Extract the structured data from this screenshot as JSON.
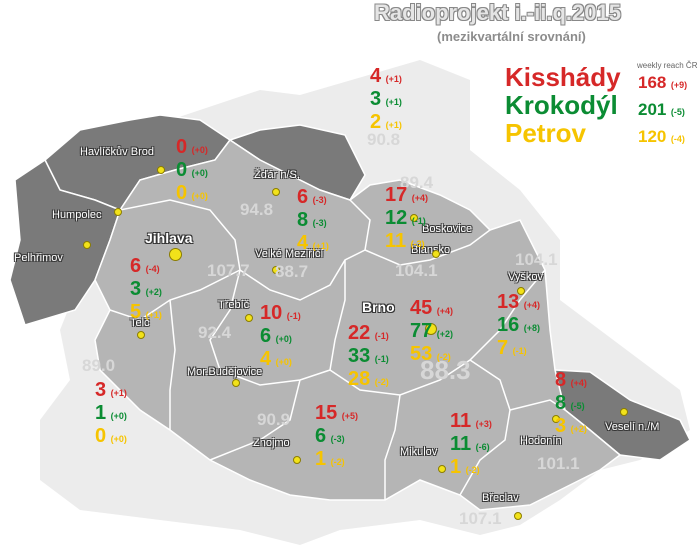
{
  "title": "Radioprojekt i.-ii.q.2015",
  "subtitle": "(mezikvartální srovnání)",
  "legend": {
    "note": "weekly reach ČR",
    "stations": [
      {
        "name": "Kisshády",
        "reach": "168",
        "change": "(+9)",
        "color": "#d62828"
      },
      {
        "name": "Krokodýl",
        "reach": "201",
        "change": "(-5)",
        "color": "#0b8c33"
      },
      {
        "name": "Petrov",
        "reach": "120",
        "change": "(-4)",
        "color": "#f6c400"
      }
    ]
  },
  "cities": [
    "Havlíčkův Brod",
    "Humpolec",
    "Pelhřimov",
    "Jihlava",
    "Telč",
    "Žďár n/S.",
    "Velké Meziříčí",
    "Třebíč",
    "Mor.Budějovice",
    "Znojmo",
    "Brno",
    "Boskovice",
    "Blansko",
    "Vyškov",
    "Hodonín",
    "Veselí n./M",
    "Mikulov",
    "Břeclav"
  ],
  "frequencies": [
    "90.8",
    "89.4",
    "94.8",
    "107.7",
    "88.7",
    "104.1",
    "104.1",
    "92.4",
    "89.0",
    "90.9",
    "88.3",
    "101.1",
    "107.1"
  ],
  "regions": [
    {
      "values": [
        [
          "0",
          "(+0)"
        ],
        [
          "0",
          "(+0)"
        ],
        [
          "0",
          "(+0)"
        ]
      ]
    },
    {
      "values": [
        [
          "4",
          "(+1)"
        ],
        [
          "3",
          "(+1)"
        ],
        [
          "2",
          "(+1)"
        ]
      ]
    },
    {
      "values": [
        [
          "6",
          "(-3)"
        ],
        [
          "8",
          "(-3)"
        ],
        [
          "4",
          "(+1)"
        ]
      ]
    },
    {
      "values": [
        [
          "17",
          "(+4)"
        ],
        [
          "12",
          "(-1)"
        ],
        [
          "11",
          "(-3)"
        ]
      ]
    },
    {
      "values": [
        [
          "6",
          "(-4)"
        ],
        [
          "3",
          "(+2)"
        ],
        [
          "5",
          "(+1)"
        ]
      ]
    },
    {
      "values": [
        [
          "10",
          "(-1)"
        ],
        [
          "6",
          "(+0)"
        ],
        [
          "4",
          "(+0)"
        ]
      ]
    },
    {
      "values": [
        [
          "45",
          "(+4)"
        ],
        [
          "77",
          "(+2)"
        ],
        [
          "53",
          "(-2)"
        ]
      ]
    },
    {
      "values": [
        [
          "22",
          "(-1)"
        ],
        [
          "33",
          "(-1)"
        ],
        [
          "28",
          "(-2)"
        ]
      ]
    },
    {
      "values": [
        [
          "13",
          "(+4)"
        ],
        [
          "16",
          "(+8)"
        ],
        [
          "7",
          "(-1)"
        ]
      ]
    },
    {
      "values": [
        [
          "3",
          "(+1)"
        ],
        [
          "1",
          "(+0)"
        ],
        [
          "0",
          "(+0)"
        ]
      ]
    },
    {
      "values": [
        [
          "15",
          "(+5)"
        ],
        [
          "6",
          "(-3)"
        ],
        [
          "1",
          "(-2)"
        ]
      ]
    },
    {
      "values": [
        [
          "11",
          "(+3)"
        ],
        [
          "11",
          "(-6)"
        ],
        [
          "1",
          "(-2)"
        ]
      ]
    },
    {
      "values": [
        [
          "8",
          "(+4)"
        ],
        [
          "8",
          "(-5)"
        ],
        [
          "3",
          "(+2)"
        ]
      ]
    }
  ]
}
